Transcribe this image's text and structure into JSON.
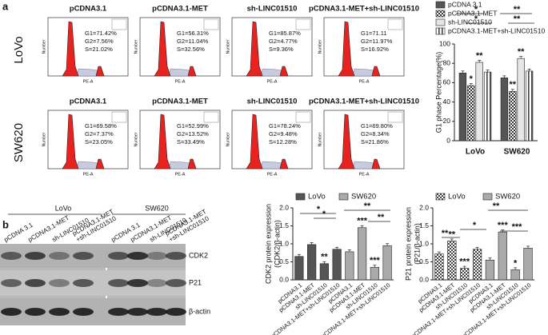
{
  "panel_labels": [
    "a",
    "b"
  ],
  "flow": {
    "rows": [
      "LoVo",
      "SW620"
    ],
    "y_axis": "Number",
    "x_axis": "PE-A",
    "plots": [
      [
        {
          "title": "pCDNA3.1",
          "stats": [
            "G1=71.42%",
            "G2=7.56%",
            "S=21.02%"
          ]
        },
        {
          "title": "pCDNA3.1-MET",
          "stats": [
            "G1=56.31%",
            "G2=11.04%",
            "S=32.56%"
          ]
        },
        {
          "title": "sh-LINC01510",
          "stats": [
            "G1=85.87%",
            "G2=4.77%",
            "S=9.36%"
          ]
        },
        {
          "title": "pCDNA3.1-MET+sh-LINC01510",
          "stats": [
            "G1=71.11",
            "G2=11.97%",
            "S=16.92%"
          ]
        }
      ],
      [
        {
          "title": "pCDNA3.1",
          "stats": [
            "G1=69.58%",
            "G2=7.37%",
            "S=23.05%"
          ]
        },
        {
          "title": "pCDNA3.1-MET",
          "stats": [
            "G1=52.99%",
            "G2=13.52%",
            "S=33.49%"
          ]
        },
        {
          "title": "sh-LINC01510",
          "stats": [
            "G1=78.24%",
            "G2=9.48%",
            "S=12.28%"
          ]
        },
        {
          "title": "pCDNA3.1-MET+sh-LINC01510",
          "stats": [
            "G1=69.80%",
            "G2=8.34%",
            "S=21.86%"
          ]
        }
      ]
    ]
  },
  "blot": {
    "group_labels": [
      "LoVo",
      "SW620"
    ],
    "lanes": [
      [
        "pCDNA 3.1"
      ],
      [
        "pCDNA3.1-MET"
      ],
      [
        "sh-LINC01510"
      ],
      [
        "pCDNA3.1-MET",
        "+sh-LINC01510"
      ],
      [
        "pCDNA 3.1"
      ],
      [
        "pCDNA3.1-MET"
      ],
      [
        "sh-LINC01510"
      ],
      [
        "pCDNA3.1-MET",
        "+sh-LINC01510"
      ]
    ],
    "proteins": [
      "CDK2",
      "P21",
      "β-actin"
    ]
  },
  "chart_data": [
    {
      "type": "bar",
      "ylabel": [
        "G1 phase Percentage(%)"
      ],
      "categories": [
        "LoVo",
        "SW620"
      ],
      "series": [
        {
          "name": "pCDNA 3.1",
          "color": "#555555",
          "pattern": "solid",
          "values": [
            70,
            65
          ]
        },
        {
          "name": "pCDNA3.1-MET",
          "color": "#333333",
          "pattern": "checker",
          "values": [
            57,
            51
          ]
        },
        {
          "name": "sh-LINC01510",
          "color": "#e6e6e6",
          "pattern": "solid",
          "values": [
            81,
            85
          ]
        },
        {
          "name": "pCDNA3.1-MET+sh-LINC01510",
          "color": "#444444",
          "pattern": "vlines",
          "values": [
            71,
            72
          ]
        }
      ],
      "ylim": [
        0,
        100
      ],
      "yticks": [
        0,
        20,
        40,
        60,
        80,
        100
      ],
      "legend": "top",
      "annotations": [
        "*",
        "**",
        "*",
        "*",
        "**",
        "**",
        "**",
        "**"
      ]
    },
    {
      "type": "bar",
      "ylabel": [
        "CDK2 protein expression",
        "(CDK2/β-actin)"
      ],
      "categories": [
        "pCDNA3.1",
        "pCDNA3.1-MET",
        "sh-LINC01510",
        "pCDNA3.1-MET+sh-LINC01510",
        "pCDNA3.1",
        "pCDNA3.1-MET",
        "sh-LINC01510",
        "pCDNA3.1-MET+sh-LINC01510"
      ],
      "series": [
        {
          "name": "LoVo",
          "color": "#555555",
          "pattern": "solid",
          "values": [
            0.65,
            0.98,
            0.45,
            0.85,
            null,
            null,
            null,
            null
          ]
        },
        {
          "name": "SW620",
          "color": "#aaaaaa",
          "pattern": "solid",
          "values": [
            null,
            null,
            null,
            null,
            0.78,
            1.45,
            0.35,
            0.95
          ]
        }
      ],
      "ylim": [
        0,
        2
      ],
      "yticks": [
        {
          "value": 0,
          "label": "0.0"
        },
        0.5,
        {
          "value": 1,
          "label": "1.0"
        },
        1.5,
        {
          "value": 2,
          "label": "2.0"
        }
      ],
      "legend": "top",
      "annotations": [
        "*",
        "*",
        "**",
        "***",
        "**",
        "***",
        "**"
      ]
    },
    {
      "type": "bar",
      "ylabel": [
        "P21 protein expression",
        "(P21/β-actin)"
      ],
      "categories": [
        "pCDNA3.1",
        "pCDNA3.1-MET",
        "sh-LINC01510",
        "pCDNA3.1-MET+sh-LINC01510",
        "pCDNA3.1",
        "pCDNA3.1-MET",
        "sh-LINC01510",
        "pCDNA3.1-MET+sh-LINC01510"
      ],
      "series": [
        {
          "name": "LoVo",
          "color": "#444444",
          "pattern": "checker",
          "values": [
            0.72,
            1.08,
            0.32,
            0.85,
            null,
            null,
            null,
            null
          ]
        },
        {
          "name": "SW620",
          "color": "#aaaaaa",
          "pattern": "solid",
          "values": [
            null,
            null,
            null,
            null,
            0.55,
            1.33,
            0.28,
            0.88
          ]
        }
      ],
      "ylim": [
        0,
        2
      ],
      "yticks": [
        {
          "value": 0,
          "label": "0.0"
        },
        0.5,
        {
          "value": 1,
          "label": "1.0"
        },
        1.5,
        {
          "value": 2,
          "label": "2.0"
        }
      ],
      "legend": "top",
      "annotations": [
        "**",
        "**",
        "***",
        "*",
        "**",
        "***",
        "*",
        "***"
      ]
    }
  ]
}
